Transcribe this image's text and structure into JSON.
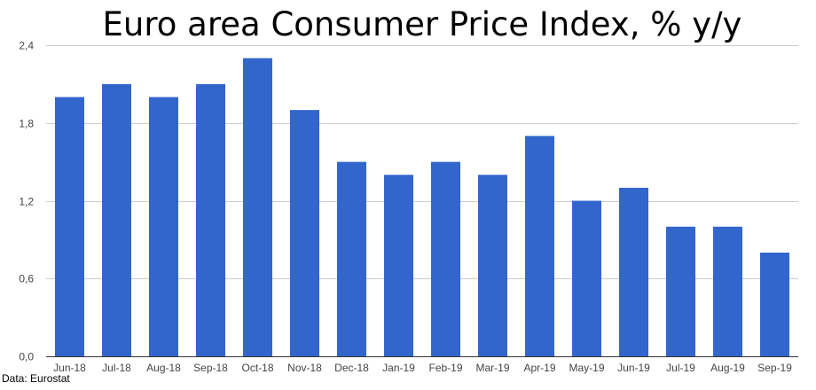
{
  "chart_data": {
    "type": "bar",
    "title": "Euro area Consumer Price Index, % y/y",
    "xlabel": "",
    "ylabel": "",
    "categories": [
      "Jun-18",
      "Jul-18",
      "Aug-18",
      "Sep-18",
      "Oct-18",
      "Nov-18",
      "Dec-18",
      "Jan-19",
      "Feb-19",
      "Mar-19",
      "Apr-19",
      "May-19",
      "Jun-19",
      "Jul-19",
      "Aug-19",
      "Sep-19"
    ],
    "values": [
      2.0,
      2.1,
      2.0,
      2.1,
      2.3,
      1.9,
      1.5,
      1.4,
      1.5,
      1.4,
      1.7,
      1.2,
      1.3,
      1.0,
      1.0,
      0.8
    ],
    "ylim": [
      0,
      2.4
    ],
    "yticks": [
      "0,0",
      "0,6",
      "1,2",
      "1,8",
      "2,4"
    ],
    "grid": true,
    "bar_color": "#3366cc"
  },
  "source": "Data: Eurostat"
}
